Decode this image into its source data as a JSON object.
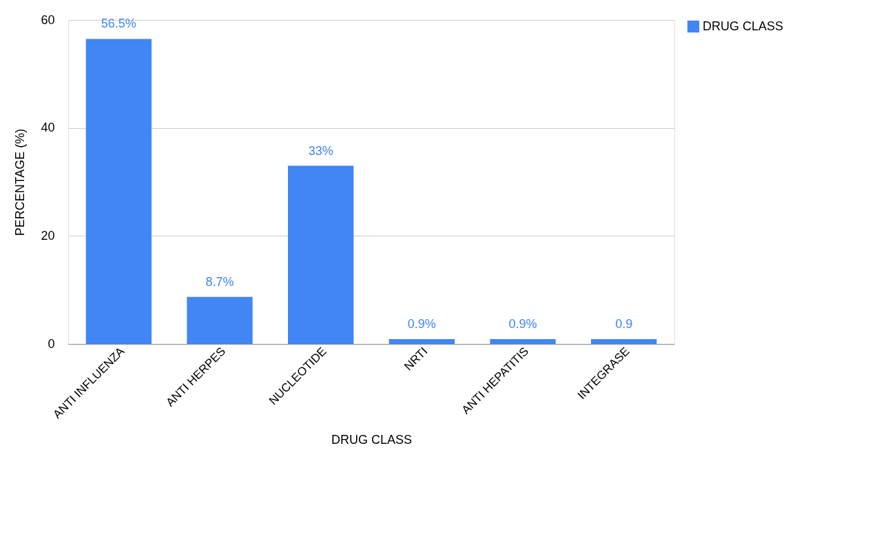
{
  "chart_data": {
    "type": "bar",
    "xlabel": "DRUG CLASS",
    "ylabel": "PERCENTAGE (%)",
    "categories": [
      "ANTI INFLUENZA",
      "ANTI HERPES",
      "NUCLEOTIDE",
      "NRTI",
      "ANTI HEPATITIS",
      "INTEGRASE"
    ],
    "series": [
      {
        "name": "DRUG CLASS",
        "color": "#4285f4",
        "values": [
          56.5,
          8.7,
          33,
          0.9,
          0.9,
          0.9
        ],
        "value_labels": [
          "56.5%",
          "8.7%",
          "33%",
          "0.9%",
          "0.9%",
          "0.9"
        ]
      }
    ],
    "ylim": [
      0,
      60
    ],
    "yticks": [
      0,
      20,
      40,
      60
    ],
    "grid": "y",
    "legend": "top right"
  }
}
